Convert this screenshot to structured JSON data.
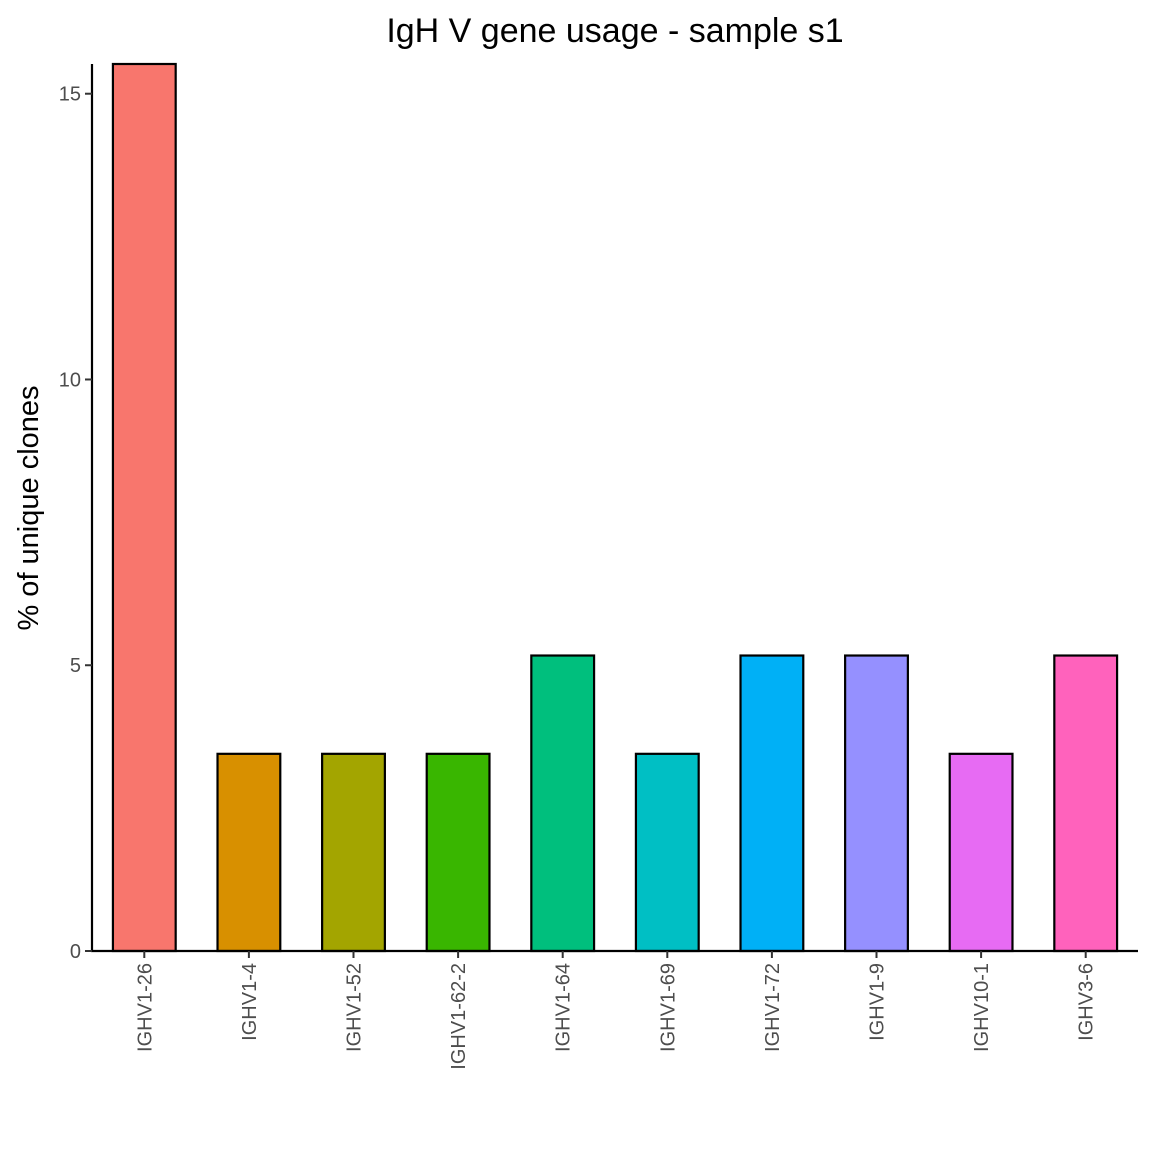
{
  "chart_data": {
    "type": "bar",
    "title": "IgH V gene usage - sample s1",
    "xlabel": "",
    "ylabel": "% of unique clones",
    "categories": [
      "IGHV1-26",
      "IGHV1-4",
      "IGHV1-52",
      "IGHV1-62-2",
      "IGHV1-64",
      "IGHV1-69",
      "IGHV1-72",
      "IGHV1-9",
      "IGHV10-1",
      "IGHV3-6"
    ],
    "values": [
      15.52,
      3.45,
      3.45,
      3.45,
      5.17,
      3.45,
      5.17,
      5.17,
      3.45,
      5.17
    ],
    "colors": [
      "#F8766D",
      "#D89000",
      "#A3A500",
      "#39B600",
      "#00BF7D",
      "#00BFC4",
      "#00B0F6",
      "#9590FF",
      "#E76BF3",
      "#FF62BC"
    ],
    "ylim": [
      0,
      15.52
    ],
    "yticks": [
      0,
      5,
      10,
      15
    ],
    "ytick_labels": [
      "0",
      "5",
      "10",
      "15"
    ],
    "grid": false,
    "legend": "none"
  }
}
